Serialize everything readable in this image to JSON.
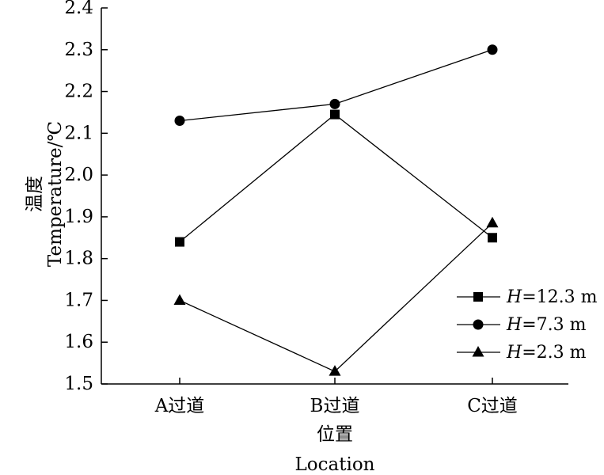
{
  "chart_data": {
    "type": "line",
    "categories": [
      "A过道",
      "B过道",
      "C过道"
    ],
    "series": [
      {
        "name": "H=12.3 m",
        "var": "H",
        "rest": "=12.3 m",
        "marker": "square",
        "values": [
          1.84,
          2.145,
          1.85
        ]
      },
      {
        "name": "H=7.3 m",
        "var": "H",
        "rest": "=7.3 m",
        "marker": "circle",
        "values": [
          2.13,
          2.17,
          2.3
        ]
      },
      {
        "name": "H=2.3 m",
        "var": "H",
        "rest": "=2.3 m",
        "marker": "triangle",
        "values": [
          1.7,
          1.53,
          1.885
        ]
      }
    ],
    "ylim": [
      1.5,
      2.4
    ],
    "yticks": [
      "1.5",
      "1.6",
      "1.7",
      "1.8",
      "1.9",
      "2.0",
      "2.1",
      "2.2",
      "2.3",
      "2.4"
    ],
    "ylabel_cn": "温度",
    "ylabel_en": "Temperature/℃",
    "xlabel_cn": "位置",
    "xlabel_en": "Location",
    "legend_position": "lower-right",
    "grid": false
  }
}
